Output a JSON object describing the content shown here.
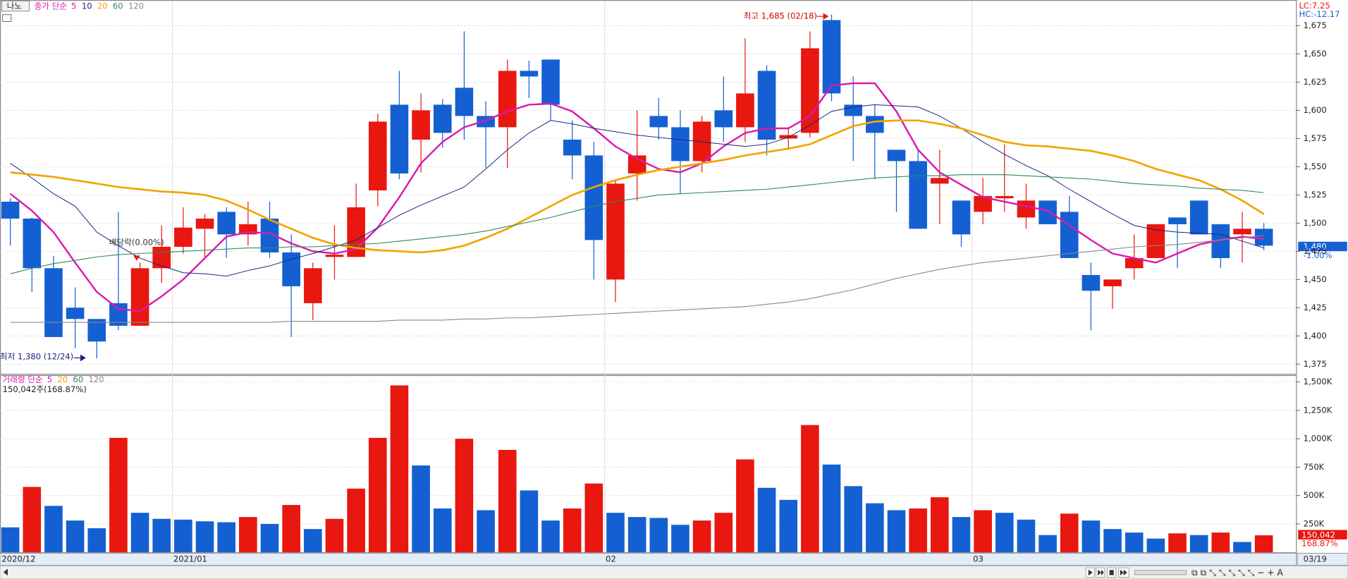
{
  "chart_data": [
    {
      "type": "candlestick",
      "symbol": "나노",
      "categories": [
        "2020/12",
        null,
        null,
        null,
        null,
        null,
        null,
        null,
        "2021/01",
        null,
        null,
        null,
        null,
        null,
        null,
        null,
        null,
        null,
        null,
        null,
        null,
        null,
        null,
        null,
        null,
        null,
        null,
        null,
        "02",
        null,
        null,
        null,
        null,
        null,
        null,
        null,
        null,
        null,
        null,
        null,
        null,
        null,
        null,
        null,
        null,
        "03",
        null,
        null,
        null,
        null,
        null,
        null,
        null,
        null,
        null,
        null,
        null,
        null,
        "03/19"
      ],
      "open": [
        1519,
        1504,
        1460,
        1425,
        1415,
        1429,
        1409,
        1460,
        1479,
        1495,
        1510,
        1490,
        1504,
        1474,
        1429,
        1470,
        1470,
        1529,
        1605,
        1574,
        1605,
        1620,
        1595,
        1585,
        1635,
        1645,
        1574,
        1560,
        1450,
        1544,
        1595,
        1585,
        1555,
        1600,
        1585,
        1635,
        1575,
        1580,
        1680,
        1605,
        1595,
        1565,
        1555,
        1535,
        1520,
        1510,
        1522,
        1505,
        1520,
        1510,
        1454,
        1444,
        1460,
        1469,
        1505,
        1520,
        1499,
        1490,
        1495
      ],
      "high": [
        1522,
        1505,
        1471,
        1443,
        1415,
        1510,
        1465,
        1498,
        1514,
        1508,
        1514,
        1519,
        1519,
        1490,
        1465,
        1498,
        1535,
        1597,
        1635,
        1615,
        1610,
        1670,
        1608,
        1645,
        1644,
        1645,
        1591,
        1572,
        1539,
        1600,
        1611,
        1600,
        1595,
        1630,
        1664,
        1640,
        1585,
        1670,
        1685,
        1630,
        1605,
        1565,
        1565,
        1565,
        1520,
        1540,
        1570,
        1535,
        1520,
        1524,
        1465,
        1450,
        1490,
        1499,
        1505,
        1520,
        1499,
        1510,
        1500
      ],
      "low": [
        1480,
        1439,
        1399,
        1389,
        1380,
        1405,
        1409,
        1447,
        1473,
        1470,
        1469,
        1480,
        1469,
        1399,
        1414,
        1450,
        1470,
        1515,
        1539,
        1545,
        1567,
        1574,
        1549,
        1549,
        1611,
        1591,
        1539,
        1450,
        1430,
        1520,
        1574,
        1526,
        1545,
        1572,
        1572,
        1560,
        1565,
        1576,
        1608,
        1555,
        1539,
        1510,
        1495,
        1499,
        1479,
        1499,
        1510,
        1495,
        1499,
        1469,
        1405,
        1424,
        1450,
        1469,
        1460,
        1490,
        1460,
        1465,
        1476
      ],
      "close": [
        1504,
        1460,
        1399,
        1415,
        1395,
        1409,
        1460,
        1479,
        1496,
        1504,
        1490,
        1499,
        1474,
        1444,
        1460,
        1472,
        1514,
        1590,
        1544,
        1600,
        1580,
        1595,
        1585,
        1635,
        1630,
        1605,
        1560,
        1485,
        1535,
        1560,
        1585,
        1555,
        1590,
        1585,
        1615,
        1574,
        1578,
        1655,
        1615,
        1595,
        1580,
        1555,
        1495,
        1540,
        1490,
        1524,
        1524,
        1520,
        1499,
        1469,
        1440,
        1450,
        1469,
        1499,
        1499,
        1490,
        1469,
        1495,
        1480
      ],
      "up_color": "#e8170f",
      "down_color": "#1460d2",
      "ylim": [
        1366,
        1694
      ],
      "yticks": [
        {
          "value": 1375,
          "label": "1,375"
        },
        {
          "value": 1400,
          "label": "1,400"
        },
        {
          "value": 1425,
          "label": "1,425"
        },
        {
          "value": 1450,
          "label": "1,450"
        },
        {
          "value": 1475,
          "label": "1,475"
        },
        {
          "value": 1500,
          "label": "1,500"
        },
        {
          "value": 1525,
          "label": "1,525"
        },
        {
          "value": 1550,
          "label": "1,550"
        },
        {
          "value": 1575,
          "label": "1,575"
        },
        {
          "value": 1600,
          "label": "1,600"
        },
        {
          "value": 1625,
          "label": "1,625"
        },
        {
          "value": 1650,
          "label": "1,650"
        },
        {
          "value": 1675,
          "label": "1,675"
        }
      ],
      "grid": true,
      "moving_averages": {
        "label": "종가 단순",
        "series": [
          {
            "name": "5",
            "color": "#d81bb0",
            "width": 2,
            "values": [
              1526,
              1511,
              1492,
              1465,
              1439,
              1424,
              1422,
              1435,
              1450,
              1469,
              1488,
              1492,
              1491,
              1482,
              1475,
              1473,
              1477,
              1496,
              1523,
              1553,
              1572,
              1585,
              1591,
              1599,
              1605,
              1606,
              1599,
              1584,
              1568,
              1557,
              1548,
              1545,
              1553,
              1568,
              1580,
              1584,
              1584,
              1595,
              1622,
              1624,
              1624,
              1599,
              1565,
              1545,
              1534,
              1523,
              1519,
              1515,
              1511,
              1498,
              1485,
              1473,
              1469,
              1465,
              1473,
              1481,
              1485,
              1488,
              1486
            ]
          },
          {
            "name": "10",
            "color": "#1a237e",
            "width": 0.8,
            "values": [
              1553,
              1540,
              1526,
              1515,
              1492,
              1480,
              1469,
              1462,
              1456,
              1455,
              1453,
              1458,
              1462,
              1468,
              1473,
              1479,
              1485,
              1496,
              1507,
              1516,
              1524,
              1532,
              1548,
              1565,
              1580,
              1591,
              1588,
              1584,
              1581,
              1578,
              1576,
              1574,
              1572,
              1570,
              1568,
              1570,
              1576,
              1587,
              1599,
              1603,
              1605,
              1604,
              1603,
              1595,
              1584,
              1572,
              1561,
              1551,
              1542,
              1530,
              1519,
              1508,
              1498,
              1494,
              1492,
              1491,
              1490,
              1484,
              1478
            ]
          },
          {
            "name": "20",
            "color": "#f0a500",
            "width": 2.2,
            "values": [
              1545,
              1543,
              1541,
              1538,
              1535,
              1532,
              1530,
              1528,
              1527,
              1525,
              1520,
              1512,
              1503,
              1495,
              1487,
              1481,
              1478,
              1476,
              1475,
              1474,
              1476,
              1480,
              1487,
              1495,
              1505,
              1515,
              1525,
              1532,
              1538,
              1543,
              1547,
              1550,
              1553,
              1556,
              1560,
              1563,
              1566,
              1570,
              1578,
              1586,
              1590,
              1591,
              1591,
              1588,
              1584,
              1578,
              1572,
              1569,
              1568,
              1566,
              1564,
              1560,
              1555,
              1548,
              1543,
              1538,
              1530,
              1520,
              1508
            ]
          },
          {
            "name": "60",
            "color": "#2e8b57",
            "width": 0.9,
            "values": [
              1455,
              1460,
              1464,
              1467,
              1470,
              1472,
              1473,
              1474,
              1475,
              1476,
              1477,
              1478,
              1478,
              1479,
              1479,
              1480,
              1481,
              1482,
              1484,
              1486,
              1488,
              1490,
              1493,
              1497,
              1501,
              1505,
              1510,
              1515,
              1519,
              1522,
              1525,
              1526,
              1527,
              1528,
              1529,
              1530,
              1532,
              1534,
              1536,
              1538,
              1540,
              1541,
              1542,
              1542,
              1543,
              1543,
              1543,
              1542,
              1541,
              1540,
              1539,
              1537,
              1535,
              1534,
              1533,
              1531,
              1530,
              1529,
              1527
            ]
          },
          {
            "name": "120",
            "color": "#8a8a8a",
            "width": 0.9,
            "values": [
              1412,
              1412,
              1412,
              1412,
              1412,
              1412,
              1412,
              1412,
              1412,
              1412,
              1412,
              1412,
              1412,
              1413,
              1413,
              1413,
              1413,
              1413,
              1414,
              1414,
              1414,
              1415,
              1415,
              1416,
              1416,
              1417,
              1418,
              1419,
              1420,
              1421,
              1422,
              1423,
              1424,
              1425,
              1426,
              1428,
              1430,
              1433,
              1437,
              1441,
              1446,
              1451,
              1455,
              1459,
              1462,
              1465,
              1467,
              1469,
              1471,
              1473,
              1475,
              1477,
              1479,
              1480,
              1481,
              1483,
              1485,
              1487,
              1489
            ]
          }
        ]
      },
      "annotations": [
        "최고 1,685 (02/18)",
        "배당락(0.00%)",
        "최저 1,380 (12/24)"
      ],
      "lc": "LC:7.25",
      "hc": "HC:-12.17",
      "last_price_label": "1,480",
      "last_change": "-1.00%"
    },
    {
      "type": "bar",
      "values": [
        220000,
        576000,
        409000,
        280000,
        212000,
        1008000,
        348000,
        295000,
        288000,
        273000,
        265000,
        311000,
        250000,
        417000,
        205000,
        295000,
        561000,
        1008000,
        1470000,
        765000,
        386000,
        1000000,
        371000,
        902000,
        545000,
        280000,
        386000,
        606000,
        348000,
        311000,
        303000,
        242000,
        280000,
        348000,
        818000,
        568000,
        462000,
        1121000,
        773000,
        583000,
        432000,
        371000,
        386000,
        485000,
        311000,
        371000,
        348000,
        288000,
        152000,
        341000,
        280000,
        205000,
        174000,
        121000,
        167000,
        152000,
        174000,
        91000,
        150042
      ],
      "up_color": "#e8170f",
      "down_color": "#1460d2",
      "ylim": [
        0,
        1553000
      ],
      "yticks": [
        {
          "value": 250000,
          "label": "250K"
        },
        {
          "value": 500000,
          "label": "500K"
        },
        {
          "value": 750000,
          "label": "750K"
        },
        {
          "value": 1000000,
          "label": "1,000K"
        },
        {
          "value": 1250000,
          "label": "1,250K"
        },
        {
          "value": 1500000,
          "label": "1,500K"
        }
      ],
      "grid": true,
      "legend": {
        "label": "거래량 단순",
        "names": [
          {
            "name": "5",
            "color": "#d81bb0"
          },
          {
            "name": "20",
            "color": "#f0a500"
          },
          {
            "name": "60",
            "color": "#2e8b57"
          },
          {
            "name": "120",
            "color": "#8a8a8a"
          }
        ]
      },
      "summary": "150,042주(168.87%)",
      "last_volume_label": "150,042",
      "last_ratio": "168.87%"
    }
  ]
}
